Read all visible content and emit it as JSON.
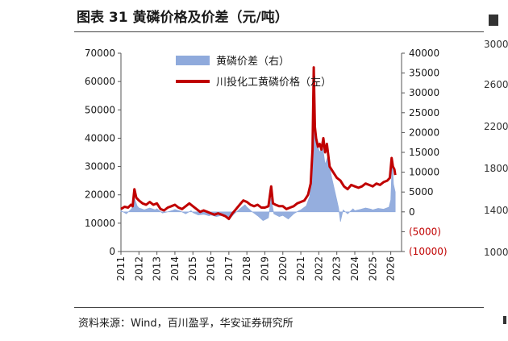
{
  "title": "图表 31 黄磷价格及价差（元/吨）",
  "source": "资料来源：Wind，百川盈孚，华安证券研究所",
  "right_fragment": {
    "ticks": [
      "3000",
      "2600",
      "2200",
      "1800",
      "1400",
      "1000"
    ]
  },
  "chart_data": {
    "type": "line",
    "title": "",
    "xlabel": "",
    "ylabel": "",
    "x_ticks": [
      "2011",
      "2012",
      "2013",
      "2014",
      "2015",
      "2016",
      "2017",
      "2018",
      "2019",
      "2020",
      "2021",
      "2022",
      "2023",
      "2024",
      "2025",
      "2026"
    ],
    "y_left": {
      "ticks": [
        "0",
        "10000",
        "20000",
        "30000",
        "40000",
        "50000",
        "60000",
        "70000"
      ],
      "range": [
        0,
        70000
      ]
    },
    "y_right": {
      "ticks": [
        {
          "label": "(10000)",
          "value": -10000,
          "color": "#c00000"
        },
        {
          "label": "(5000)",
          "value": -5000,
          "color": "#c00000"
        },
        {
          "label": "0",
          "value": 0,
          "color": "#1a1a1a"
        },
        {
          "label": "5000",
          "value": 5000,
          "color": "#1a1a1a"
        },
        {
          "label": "10000",
          "value": 10000,
          "color": "#1a1a1a"
        },
        {
          "label": "15000",
          "value": 15000,
          "color": "#1a1a1a"
        },
        {
          "label": "20000",
          "value": 20000,
          "color": "#1a1a1a"
        },
        {
          "label": "25000",
          "value": 25000,
          "color": "#1a1a1a"
        },
        {
          "label": "30000",
          "value": 30000,
          "color": "#1a1a1a"
        },
        {
          "label": "35000",
          "value": 35000,
          "color": "#1a1a1a"
        },
        {
          "label": "40000",
          "value": 40000,
          "color": "#1a1a1a"
        }
      ],
      "range": [
        -10000,
        40000
      ]
    },
    "legend": {
      "placement": "top-center",
      "entries": [
        {
          "label": "黄磷价差（右）",
          "kind": "area",
          "color": "#8faadc"
        },
        {
          "label": "川投化工黄磷价格（左）",
          "kind": "line",
          "color": "#c00000"
        }
      ]
    },
    "series": [
      {
        "name": "川投化工黄磷价格（左）",
        "axis": "left",
        "kind": "line",
        "color": "#c00000",
        "points": [
          [
            2011.0,
            15000
          ],
          [
            2011.2,
            15800
          ],
          [
            2011.4,
            15500
          ],
          [
            2011.55,
            16500
          ],
          [
            2011.65,
            16000
          ],
          [
            2011.75,
            22000
          ],
          [
            2011.85,
            19000
          ],
          [
            2012.0,
            18000
          ],
          [
            2012.2,
            17000
          ],
          [
            2012.4,
            16500
          ],
          [
            2012.6,
            17500
          ],
          [
            2012.8,
            16500
          ],
          [
            2013.0,
            17000
          ],
          [
            2013.2,
            15000
          ],
          [
            2013.4,
            14500
          ],
          [
            2013.6,
            15500
          ],
          [
            2013.8,
            16000
          ],
          [
            2014.0,
            16500
          ],
          [
            2014.2,
            15500
          ],
          [
            2014.4,
            15000
          ],
          [
            2014.6,
            16000
          ],
          [
            2014.8,
            17000
          ],
          [
            2015.0,
            16000
          ],
          [
            2015.2,
            15000
          ],
          [
            2015.4,
            14000
          ],
          [
            2015.6,
            14500
          ],
          [
            2015.8,
            14000
          ],
          [
            2016.0,
            13500
          ],
          [
            2016.2,
            13000
          ],
          [
            2016.4,
            13500
          ],
          [
            2016.6,
            13000
          ],
          [
            2016.8,
            12500
          ],
          [
            2017.0,
            11500
          ],
          [
            2017.2,
            13500
          ],
          [
            2017.4,
            15000
          ],
          [
            2017.6,
            16500
          ],
          [
            2017.8,
            18000
          ],
          [
            2018.0,
            17500
          ],
          [
            2018.2,
            16500
          ],
          [
            2018.4,
            16000
          ],
          [
            2018.6,
            16500
          ],
          [
            2018.8,
            15500
          ],
          [
            2019.0,
            15500
          ],
          [
            2019.2,
            16000
          ],
          [
            2019.35,
            23000
          ],
          [
            2019.45,
            17000
          ],
          [
            2019.6,
            16500
          ],
          [
            2019.8,
            16000
          ],
          [
            2020.0,
            16000
          ],
          [
            2020.2,
            15000
          ],
          [
            2020.4,
            15500
          ],
          [
            2020.6,
            16000
          ],
          [
            2020.8,
            17000
          ],
          [
            2021.0,
            17500
          ],
          [
            2021.2,
            18000
          ],
          [
            2021.4,
            20000
          ],
          [
            2021.55,
            24000
          ],
          [
            2021.65,
            36000
          ],
          [
            2021.72,
            65000
          ],
          [
            2021.78,
            44000
          ],
          [
            2021.85,
            40000
          ],
          [
            2021.95,
            37000
          ],
          [
            2022.05,
            38000
          ],
          [
            2022.15,
            36000
          ],
          [
            2022.25,
            40000
          ],
          [
            2022.35,
            35000
          ],
          [
            2022.45,
            38000
          ],
          [
            2022.6,
            30000
          ],
          [
            2022.8,
            28000
          ],
          [
            2023.0,
            26000
          ],
          [
            2023.2,
            25000
          ],
          [
            2023.4,
            23000
          ],
          [
            2023.6,
            22000
          ],
          [
            2023.8,
            23500
          ],
          [
            2024.0,
            23000
          ],
          [
            2024.2,
            22500
          ],
          [
            2024.4,
            23000
          ],
          [
            2024.6,
            24000
          ],
          [
            2024.8,
            23500
          ],
          [
            2025.0,
            23000
          ],
          [
            2025.2,
            24000
          ],
          [
            2025.4,
            23500
          ],
          [
            2025.6,
            24500
          ],
          [
            2025.8,
            25000
          ],
          [
            2025.95,
            26000
          ],
          [
            2026.05,
            33000
          ],
          [
            2026.12,
            30000
          ],
          [
            2026.2,
            29000
          ],
          [
            2026.25,
            27000
          ]
        ]
      },
      {
        "name": "黄磷价差（右）",
        "axis": "right",
        "kind": "area",
        "color": "#8faadc",
        "points": [
          [
            2011.0,
            300
          ],
          [
            2011.3,
            -500
          ],
          [
            2011.6,
            800
          ],
          [
            2011.75,
            3500
          ],
          [
            2011.9,
            1500
          ],
          [
            2012.0,
            1000
          ],
          [
            2012.3,
            500
          ],
          [
            2012.6,
            1000
          ],
          [
            2012.9,
            500
          ],
          [
            2013.0,
            800
          ],
          [
            2013.3,
            -300
          ],
          [
            2013.6,
            0
          ],
          [
            2013.9,
            400
          ],
          [
            2014.0,
            600
          ],
          [
            2014.3,
            200
          ],
          [
            2014.6,
            -500
          ],
          [
            2014.9,
            300
          ],
          [
            2015.0,
            -200
          ],
          [
            2015.3,
            -800
          ],
          [
            2015.6,
            -600
          ],
          [
            2015.9,
            -1000
          ],
          [
            2016.0,
            -800
          ],
          [
            2016.3,
            -1200
          ],
          [
            2016.6,
            -900
          ],
          [
            2016.9,
            -1500
          ],
          [
            2017.0,
            -2000
          ],
          [
            2017.3,
            -500
          ],
          [
            2017.6,
            700
          ],
          [
            2017.9,
            1800
          ],
          [
            2018.0,
            1200
          ],
          [
            2018.3,
            0
          ],
          [
            2018.6,
            -1000
          ],
          [
            2018.9,
            -2200
          ],
          [
            2019.0,
            -2000
          ],
          [
            2019.2,
            -1500
          ],
          [
            2019.35,
            3500
          ],
          [
            2019.5,
            -500
          ],
          [
            2019.8,
            -1200
          ],
          [
            2020.0,
            -900
          ],
          [
            2020.3,
            -1800
          ],
          [
            2020.6,
            -500
          ],
          [
            2020.9,
            300
          ],
          [
            2021.0,
            500
          ],
          [
            2021.3,
            1500
          ],
          [
            2021.5,
            4000
          ],
          [
            2021.6,
            12000
          ],
          [
            2021.72,
            35000
          ],
          [
            2021.8,
            20000
          ],
          [
            2021.9,
            17000
          ],
          [
            2022.05,
            15000
          ],
          [
            2022.2,
            17000
          ],
          [
            2022.35,
            12000
          ],
          [
            2022.5,
            14000
          ],
          [
            2022.7,
            9000
          ],
          [
            2022.9,
            5000
          ],
          [
            2023.0,
            3000
          ],
          [
            2023.1,
            1000
          ],
          [
            2023.2,
            -2500
          ],
          [
            2023.35,
            500
          ],
          [
            2023.6,
            -500
          ],
          [
            2023.9,
            800
          ],
          [
            2024.0,
            300
          ],
          [
            2024.3,
            600
          ],
          [
            2024.6,
            1000
          ],
          [
            2024.9,
            700
          ],
          [
            2025.0,
            500
          ],
          [
            2025.3,
            900
          ],
          [
            2025.6,
            700
          ],
          [
            2025.9,
            1200
          ],
          [
            2026.0,
            3000
          ],
          [
            2026.08,
            13000
          ],
          [
            2026.15,
            7000
          ],
          [
            2026.25,
            5000
          ]
        ]
      }
    ]
  }
}
